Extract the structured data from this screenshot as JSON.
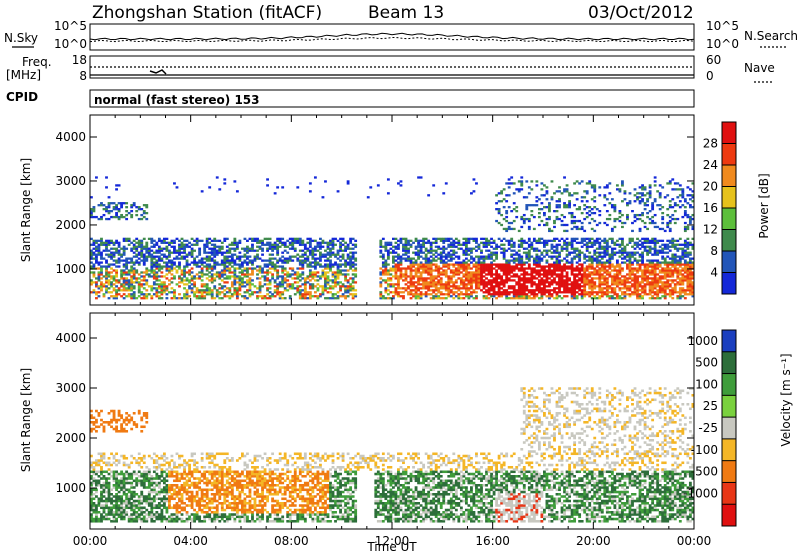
{
  "header": {
    "station": "Zhongshan Station (fitACF)",
    "beam": "Beam 13",
    "date": "03/Oct/2012"
  },
  "side_labels": {
    "nsky": "N.Sky",
    "nsearch": "N.Search",
    "freq": "Freq.",
    "freq_unit": "[MHz]",
    "nave": "Nave",
    "cpid": "CPID",
    "mode": "normal (fast stereo) 153"
  },
  "small_panels": {
    "noise_ticks_left": [
      "10^5",
      "10^0"
    ],
    "noise_ticks_right": [
      "10^5",
      "10^0"
    ],
    "freq_ticks": [
      "18",
      "8"
    ],
    "nave_ticks": [
      "60",
      "0"
    ]
  },
  "chart_data": [
    {
      "type": "heatmap",
      "panel": "power",
      "ylabel": "Slant Range [km]",
      "xlabel": "",
      "ylim": [
        180,
        4500
      ],
      "yticks": [
        "1000",
        "2000",
        "3000",
        "4000"
      ],
      "xlim": [
        0,
        24
      ],
      "colorbar": {
        "label": "Power [dB]",
        "ticks": [
          "4",
          "8",
          "12",
          "16",
          "20",
          "24",
          "28"
        ],
        "colors": [
          "#1428d8",
          "#2255b8",
          "#3f8a4c",
          "#5dbf3b",
          "#e6c21c",
          "#f08a1e",
          "#ee3a10",
          "#e01010"
        ]
      },
      "echo_regions_description_hours_km": [
        {
          "t": [
            0.0,
            12.0
          ],
          "r": [
            300,
            1700
          ],
          "level": "mixed 4-24"
        },
        {
          "t": [
            12.0,
            24.0
          ],
          "r": [
            400,
            1000
          ],
          "level": "high 20-28+"
        },
        {
          "t": [
            0.0,
            2.0
          ],
          "r": [
            2100,
            2500
          ],
          "level": "low 4-12"
        },
        {
          "t": [
            16.0,
            24.0
          ],
          "r": [
            1800,
            3000
          ],
          "level": "low 4-12"
        }
      ]
    },
    {
      "type": "heatmap",
      "panel": "velocity",
      "ylabel": "Slant Range [km]",
      "xlabel": "Time UT",
      "ylim": [
        180,
        4500
      ],
      "yticks": [
        "1000",
        "2000",
        "3000",
        "4000"
      ],
      "xlim": [
        0,
        24
      ],
      "xticks": [
        "00:00",
        "04:00",
        "08:00",
        "12:00",
        "16:00",
        "20:00",
        "00:00"
      ],
      "colorbar": {
        "label": "Velocity [m s⁻¹]",
        "ticks": [
          "1000",
          "500",
          "100",
          "25",
          "-25",
          "-100",
          "-500",
          "-1000"
        ],
        "colors": [
          "#1b3fbf",
          "#2d6e3a",
          "#3f9d3b",
          "#7ad13e",
          "#c8c8c0",
          "#f4b626",
          "#f07a12",
          "#e83616",
          "#e01010"
        ]
      },
      "echo_regions_description_hours_km": [
        {
          "t": [
            0.0,
            12.0
          ],
          "r": [
            300,
            1300
          ],
          "level": "mixed green/orange"
        },
        {
          "t": [
            12.0,
            24.0
          ],
          "r": [
            400,
            1400
          ],
          "level": "mostly green"
        },
        {
          "t": [
            0.0,
            2.0
          ],
          "r": [
            2100,
            2500
          ],
          "level": "orange"
        },
        {
          "t": [
            17.0,
            24.0
          ],
          "r": [
            1400,
            3000
          ],
          "level": "grey/orange"
        }
      ]
    }
  ]
}
